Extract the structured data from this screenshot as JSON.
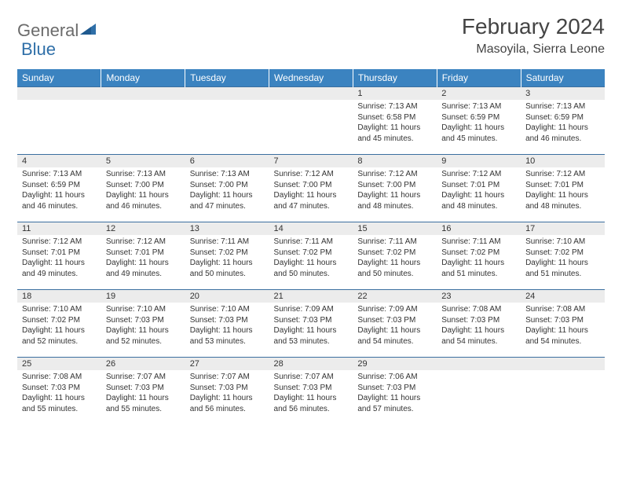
{
  "brand": {
    "part1": "General",
    "part2": "Blue"
  },
  "title": "February 2024",
  "location": "Masoyila, Sierra Leone",
  "colors": {
    "header_bg": "#3b83c0",
    "header_text": "#ffffff",
    "row_divider": "#3b6fa0",
    "daynum_bg": "#ececec",
    "logo_gray": "#6b6b6b",
    "logo_blue": "#2f6fa8"
  },
  "dayNames": [
    "Sunday",
    "Monday",
    "Tuesday",
    "Wednesday",
    "Thursday",
    "Friday",
    "Saturday"
  ],
  "weeks": [
    [
      null,
      null,
      null,
      null,
      {
        "n": "1",
        "sunrise": "7:13 AM",
        "sunset": "6:58 PM",
        "dl": "11 hours and 45 minutes."
      },
      {
        "n": "2",
        "sunrise": "7:13 AM",
        "sunset": "6:59 PM",
        "dl": "11 hours and 45 minutes."
      },
      {
        "n": "3",
        "sunrise": "7:13 AM",
        "sunset": "6:59 PM",
        "dl": "11 hours and 46 minutes."
      }
    ],
    [
      {
        "n": "4",
        "sunrise": "7:13 AM",
        "sunset": "6:59 PM",
        "dl": "11 hours and 46 minutes."
      },
      {
        "n": "5",
        "sunrise": "7:13 AM",
        "sunset": "7:00 PM",
        "dl": "11 hours and 46 minutes."
      },
      {
        "n": "6",
        "sunrise": "7:13 AM",
        "sunset": "7:00 PM",
        "dl": "11 hours and 47 minutes."
      },
      {
        "n": "7",
        "sunrise": "7:12 AM",
        "sunset": "7:00 PM",
        "dl": "11 hours and 47 minutes."
      },
      {
        "n": "8",
        "sunrise": "7:12 AM",
        "sunset": "7:00 PM",
        "dl": "11 hours and 48 minutes."
      },
      {
        "n": "9",
        "sunrise": "7:12 AM",
        "sunset": "7:01 PM",
        "dl": "11 hours and 48 minutes."
      },
      {
        "n": "10",
        "sunrise": "7:12 AM",
        "sunset": "7:01 PM",
        "dl": "11 hours and 48 minutes."
      }
    ],
    [
      {
        "n": "11",
        "sunrise": "7:12 AM",
        "sunset": "7:01 PM",
        "dl": "11 hours and 49 minutes."
      },
      {
        "n": "12",
        "sunrise": "7:12 AM",
        "sunset": "7:01 PM",
        "dl": "11 hours and 49 minutes."
      },
      {
        "n": "13",
        "sunrise": "7:11 AM",
        "sunset": "7:02 PM",
        "dl": "11 hours and 50 minutes."
      },
      {
        "n": "14",
        "sunrise": "7:11 AM",
        "sunset": "7:02 PM",
        "dl": "11 hours and 50 minutes."
      },
      {
        "n": "15",
        "sunrise": "7:11 AM",
        "sunset": "7:02 PM",
        "dl": "11 hours and 50 minutes."
      },
      {
        "n": "16",
        "sunrise": "7:11 AM",
        "sunset": "7:02 PM",
        "dl": "11 hours and 51 minutes."
      },
      {
        "n": "17",
        "sunrise": "7:10 AM",
        "sunset": "7:02 PM",
        "dl": "11 hours and 51 minutes."
      }
    ],
    [
      {
        "n": "18",
        "sunrise": "7:10 AM",
        "sunset": "7:02 PM",
        "dl": "11 hours and 52 minutes."
      },
      {
        "n": "19",
        "sunrise": "7:10 AM",
        "sunset": "7:03 PM",
        "dl": "11 hours and 52 minutes."
      },
      {
        "n": "20",
        "sunrise": "7:10 AM",
        "sunset": "7:03 PM",
        "dl": "11 hours and 53 minutes."
      },
      {
        "n": "21",
        "sunrise": "7:09 AM",
        "sunset": "7:03 PM",
        "dl": "11 hours and 53 minutes."
      },
      {
        "n": "22",
        "sunrise": "7:09 AM",
        "sunset": "7:03 PM",
        "dl": "11 hours and 54 minutes."
      },
      {
        "n": "23",
        "sunrise": "7:08 AM",
        "sunset": "7:03 PM",
        "dl": "11 hours and 54 minutes."
      },
      {
        "n": "24",
        "sunrise": "7:08 AM",
        "sunset": "7:03 PM",
        "dl": "11 hours and 54 minutes."
      }
    ],
    [
      {
        "n": "25",
        "sunrise": "7:08 AM",
        "sunset": "7:03 PM",
        "dl": "11 hours and 55 minutes."
      },
      {
        "n": "26",
        "sunrise": "7:07 AM",
        "sunset": "7:03 PM",
        "dl": "11 hours and 55 minutes."
      },
      {
        "n": "27",
        "sunrise": "7:07 AM",
        "sunset": "7:03 PM",
        "dl": "11 hours and 56 minutes."
      },
      {
        "n": "28",
        "sunrise": "7:07 AM",
        "sunset": "7:03 PM",
        "dl": "11 hours and 56 minutes."
      },
      {
        "n": "29",
        "sunrise": "7:06 AM",
        "sunset": "7:03 PM",
        "dl": "11 hours and 57 minutes."
      },
      null,
      null
    ]
  ],
  "labels": {
    "sunrise": "Sunrise:",
    "sunset": "Sunset:",
    "daylight": "Daylight:"
  }
}
